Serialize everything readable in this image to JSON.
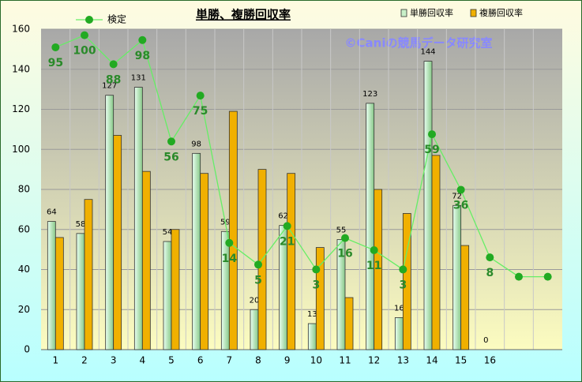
{
  "chart_data": {
    "type": "bar",
    "title": "単勝、複勝回収率",
    "annotation": "©Caniの競馬データ研究室",
    "categories": [
      "1",
      "2",
      "3",
      "4",
      "5",
      "6",
      "7",
      "8",
      "9",
      "10",
      "11",
      "12",
      "13",
      "14",
      "15",
      "16",
      null,
      null
    ],
    "ylim": [
      0,
      160
    ],
    "yticks": [
      0,
      20,
      40,
      60,
      80,
      100,
      120,
      140,
      160
    ],
    "y2lim": [
      -30.2,
      102.5
    ],
    "grid": true,
    "series": [
      {
        "name": "単勝回収率",
        "type": "bar",
        "color": "#b8e8b8",
        "values": [
          64,
          58,
          127,
          131,
          54,
          98,
          59,
          20,
          62,
          13,
          55,
          123,
          16,
          144,
          72,
          0,
          null,
          null
        ],
        "data_labels": true
      },
      {
        "name": "複勝回収率",
        "type": "bar",
        "color": "#f0b000",
        "values": [
          56,
          75,
          107,
          89,
          60,
          88,
          119,
          90,
          88,
          51,
          26,
          80,
          68,
          97,
          52,
          0,
          null,
          null
        ]
      },
      {
        "name": "検定",
        "type": "line",
        "axis": "y2",
        "color": "#22aa22",
        "values": [
          95,
          100,
          88,
          98,
          56,
          75,
          14,
          5,
          21,
          3,
          16,
          11,
          3,
          59,
          36,
          8,
          0,
          0
        ],
        "value_labels": [
          "95",
          "100",
          "88",
          "98",
          "56",
          "75",
          "14",
          "5",
          "21",
          "3",
          "16",
          "11",
          "3",
          "59",
          "36",
          "8",
          null,
          null
        ]
      }
    ]
  }
}
